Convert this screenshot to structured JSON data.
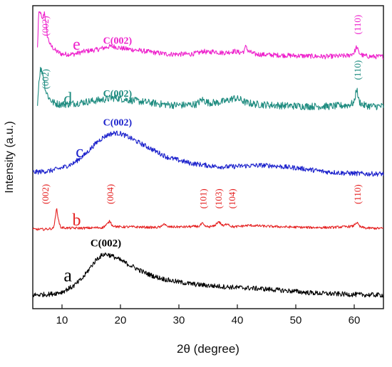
{
  "chart_data": {
    "type": "line",
    "xlabel": "2θ (degree)",
    "ylabel": "Intensity (a.u.)",
    "xlim": [
      5,
      65
    ],
    "xticks": [
      10,
      20,
      30,
      40,
      50,
      60
    ],
    "series": [
      {
        "name": "e",
        "color": "#ee22cc",
        "baseline": 0.83,
        "noise": 0.008,
        "x": [
          5.8,
          6.0,
          6.3,
          6.6,
          7.0,
          7.5,
          8.0,
          9,
          10,
          12,
          14,
          16,
          18,
          19,
          20,
          22,
          24,
          26,
          28,
          30,
          32,
          33.5,
          34.2,
          35,
          36,
          37,
          38,
          39.5,
          40.5,
          41.2,
          41.5,
          41.8,
          43,
          45,
          50,
          55,
          59,
          60,
          60.4,
          60.8,
          61.5,
          63,
          65
        ],
        "y": [
          0.86,
          0.97,
          0.98,
          0.95,
          0.98,
          0.9,
          0.87,
          0.85,
          0.84,
          0.84,
          0.85,
          0.855,
          0.865,
          0.865,
          0.86,
          0.855,
          0.85,
          0.845,
          0.84,
          0.84,
          0.84,
          0.845,
          0.85,
          0.845,
          0.85,
          0.845,
          0.845,
          0.85,
          0.845,
          0.85,
          0.87,
          0.85,
          0.84,
          0.838,
          0.835,
          0.832,
          0.835,
          0.845,
          0.865,
          0.845,
          0.835,
          0.832,
          0.832
        ],
        "labels": [
          {
            "text": "e",
            "x": 12.5,
            "y": 0.855,
            "size": 24
          },
          {
            "text": "C(002)",
            "x": 19.5,
            "y": 0.875,
            "size": 14,
            "bold": true
          },
          {
            "text": "(002)",
            "x": 7.1,
            "y": 0.9,
            "size": 13,
            "rotate": true
          },
          {
            "text": "(110)",
            "x": 60.5,
            "y": 0.905,
            "size": 13,
            "rotate": true
          }
        ]
      },
      {
        "name": "d",
        "color": "#1f8c80",
        "baseline": 0.665,
        "noise": 0.012,
        "x": [
          5.8,
          6.0,
          6.3,
          6.7,
          7.2,
          7.8,
          8.5,
          9.5,
          11,
          13,
          15,
          17,
          18.5,
          19.5,
          21,
          23,
          25,
          27,
          29,
          31,
          33,
          34,
          35,
          36.5,
          38,
          39.5,
          40.5,
          41.5,
          43,
          45,
          48,
          52,
          56,
          59,
          60,
          60.4,
          60.8,
          61.5,
          63,
          65
        ],
        "y": [
          0.67,
          0.74,
          0.79,
          0.78,
          0.72,
          0.695,
          0.68,
          0.675,
          0.675,
          0.68,
          0.685,
          0.69,
          0.695,
          0.695,
          0.69,
          0.685,
          0.68,
          0.675,
          0.672,
          0.672,
          0.675,
          0.69,
          0.68,
          0.68,
          0.685,
          0.695,
          0.69,
          0.68,
          0.675,
          0.673,
          0.67,
          0.668,
          0.668,
          0.672,
          0.68,
          0.73,
          0.685,
          0.672,
          0.668,
          0.668
        ],
        "labels": [
          {
            "text": "d",
            "x": 11.0,
            "y": 0.675,
            "size": 24
          },
          {
            "text": "C(002)",
            "x": 19.5,
            "y": 0.7,
            "size": 14,
            "bold": true
          },
          {
            "text": "(002)",
            "x": 7.1,
            "y": 0.725,
            "size": 13,
            "rotate": true
          },
          {
            "text": "(110)",
            "x": 60.5,
            "y": 0.755,
            "size": 13,
            "rotate": true
          }
        ]
      },
      {
        "name": "c",
        "color": "#1c22cc",
        "baseline": 0.44,
        "noise": 0.008,
        "x": [
          5,
          8,
          10,
          12,
          14,
          16,
          17,
          18,
          19,
          20,
          21,
          22,
          24,
          26,
          28,
          30,
          32,
          34,
          36,
          38,
          40,
          42,
          44,
          46,
          48,
          50,
          52,
          55,
          58,
          62,
          65
        ],
        "y": [
          0.45,
          0.455,
          0.465,
          0.48,
          0.51,
          0.55,
          0.565,
          0.575,
          0.58,
          0.578,
          0.57,
          0.56,
          0.54,
          0.52,
          0.5,
          0.49,
          0.48,
          0.475,
          0.47,
          0.468,
          0.47,
          0.472,
          0.473,
          0.472,
          0.468,
          0.465,
          0.46,
          0.452,
          0.448,
          0.445,
          0.445
        ],
        "labels": [
          {
            "text": "c",
            "x": 13.0,
            "y": 0.5,
            "size": 24
          },
          {
            "text": "C(002)",
            "x": 19.5,
            "y": 0.605,
            "size": 14,
            "bold": true
          }
        ]
      },
      {
        "name": "b",
        "color": "#e52222",
        "baseline": 0.265,
        "noise": 0.004,
        "x": [
          5,
          7,
          8.5,
          8.8,
          9.1,
          9.4,
          9.8,
          11,
          14,
          17,
          17.8,
          18.2,
          18.6,
          19.5,
          22,
          26,
          27,
          27.4,
          28,
          31,
          33.5,
          34,
          34.4,
          35,
          36,
          36.8,
          37.6,
          38.3,
          38.9,
          39.5,
          42,
          45,
          48,
          52,
          56,
          59.8,
          60.4,
          61,
          62,
          65
        ],
        "y": [
          0.262,
          0.262,
          0.265,
          0.29,
          0.335,
          0.29,
          0.268,
          0.266,
          0.266,
          0.268,
          0.28,
          0.29,
          0.275,
          0.27,
          0.27,
          0.268,
          0.27,
          0.282,
          0.27,
          0.27,
          0.272,
          0.282,
          0.272,
          0.27,
          0.272,
          0.288,
          0.272,
          0.282,
          0.272,
          0.27,
          0.275,
          0.272,
          0.27,
          0.268,
          0.268,
          0.272,
          0.285,
          0.27,
          0.266,
          0.265
        ],
        "labels": [
          {
            "text": "b",
            "x": 12.5,
            "y": 0.275,
            "size": 24
          },
          {
            "text": "(002)",
            "x": 7.1,
            "y": 0.345,
            "size": 13,
            "rotate": true
          },
          {
            "text": "(004)",
            "x": 18.2,
            "y": 0.345,
            "size": 13,
            "rotate": true
          },
          {
            "text": "(101)",
            "x": 34.1,
            "y": 0.33,
            "size": 13,
            "rotate": true
          },
          {
            "text": "(103)",
            "x": 36.7,
            "y": 0.33,
            "size": 13,
            "rotate": true
          },
          {
            "text": "(104)",
            "x": 39.0,
            "y": 0.33,
            "size": 13,
            "rotate": true
          },
          {
            "text": "(110)",
            "x": 60.5,
            "y": 0.345,
            "size": 13,
            "rotate": true
          }
        ]
      },
      {
        "name": "a",
        "color": "#000000",
        "baseline": 0.045,
        "noise": 0.008,
        "x": [
          5,
          8,
          10,
          12,
          13.5,
          15,
          16,
          17,
          17.5,
          18,
          19,
          20,
          22,
          24,
          26,
          28,
          30,
          32,
          34,
          36,
          38,
          40,
          42,
          44,
          46,
          48,
          50,
          52,
          55,
          58,
          61,
          65
        ],
        "y": [
          0.045,
          0.048,
          0.055,
          0.075,
          0.1,
          0.14,
          0.165,
          0.178,
          0.18,
          0.178,
          0.17,
          0.16,
          0.14,
          0.12,
          0.105,
          0.095,
          0.088,
          0.082,
          0.078,
          0.075,
          0.072,
          0.07,
          0.068,
          0.066,
          0.063,
          0.06,
          0.057,
          0.053,
          0.05,
          0.048,
          0.046,
          0.045
        ],
        "labels": [
          {
            "text": "a",
            "x": 11.0,
            "y": 0.09,
            "size": 26
          },
          {
            "text": "C(002)",
            "x": 17.5,
            "y": 0.205,
            "size": 15,
            "bold": true
          }
        ]
      }
    ]
  }
}
